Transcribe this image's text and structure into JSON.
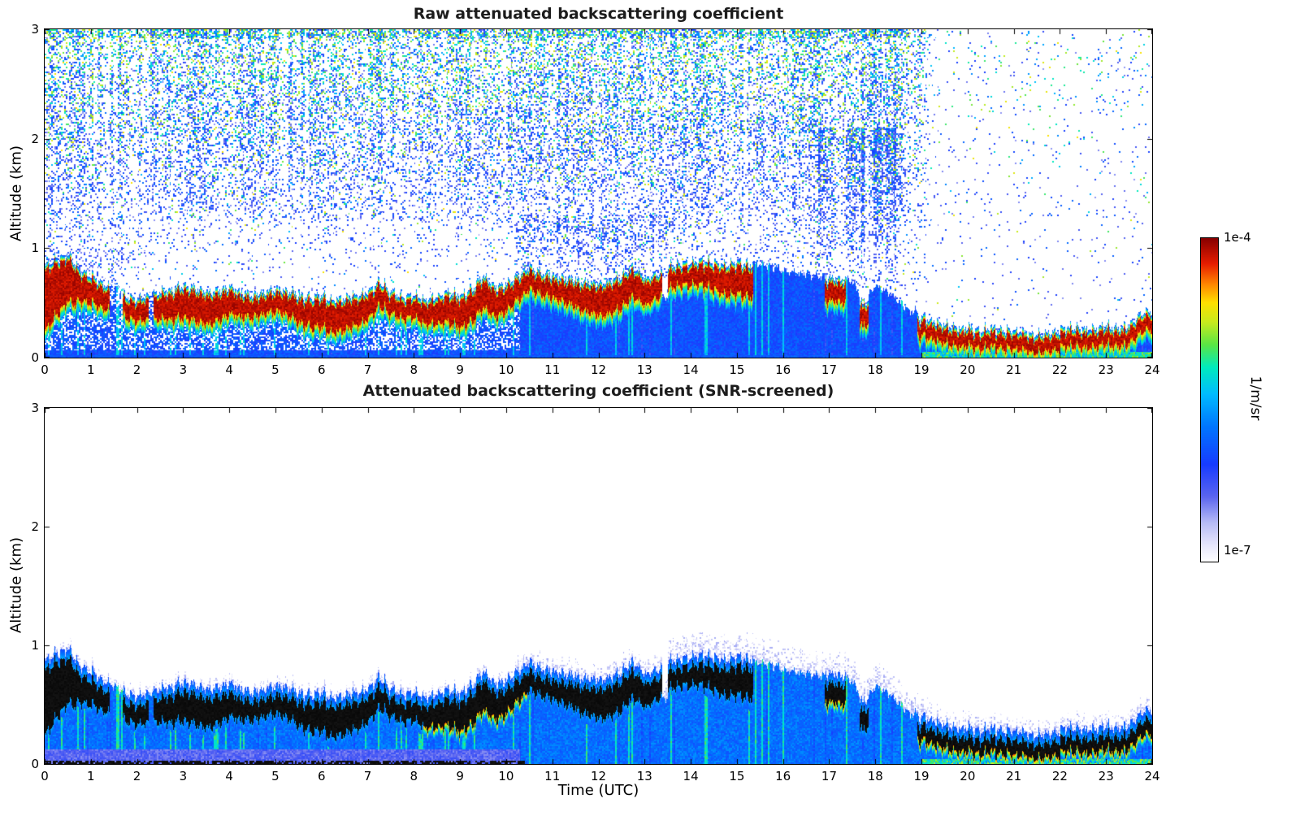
{
  "chart_data": {
    "type": "heatmap",
    "panels": [
      {
        "title": "Raw attenuated backscattering coefficient",
        "mode": "raw",
        "ylabel": "Altitude (km)"
      },
      {
        "title": "Attenuated backscattering coefficient (SNR-screened)",
        "mode": "screened",
        "ylabel": "Altitude (km)"
      }
    ],
    "xlabel": "Time (UTC)",
    "x_range": [
      0,
      24
    ],
    "y_range": [
      0,
      3
    ],
    "x_ticks": [
      0,
      1,
      2,
      3,
      4,
      5,
      6,
      7,
      8,
      9,
      10,
      11,
      12,
      13,
      14,
      15,
      16,
      17,
      18,
      19,
      20,
      21,
      22,
      23,
      24
    ],
    "y_ticks": [
      0,
      1,
      2,
      3
    ],
    "colorbar": {
      "max_label": "1e-4",
      "min_label": "1e-7",
      "unit": "1/m/sr",
      "scale": "log"
    },
    "colormap_stops": [
      [
        0.0,
        255,
        255,
        255
      ],
      [
        0.05,
        232,
        232,
        252
      ],
      [
        0.12,
        184,
        188,
        246
      ],
      [
        0.2,
        92,
        102,
        240
      ],
      [
        0.3,
        24,
        60,
        255
      ],
      [
        0.42,
        0,
        120,
        255
      ],
      [
        0.52,
        0,
        190,
        255
      ],
      [
        0.6,
        0,
        235,
        190
      ],
      [
        0.67,
        90,
        230,
        70
      ],
      [
        0.74,
        200,
        235,
        30
      ],
      [
        0.8,
        255,
        225,
        0
      ],
      [
        0.86,
        255,
        130,
        0
      ],
      [
        0.92,
        232,
        30,
        0
      ],
      [
        1.0,
        135,
        0,
        0
      ]
    ],
    "time_step_h": 0.25,
    "aerosol_layer_top_km": [
      0.8,
      0.85,
      0.9,
      0.75,
      0.7,
      0.62,
      0.58,
      0.52,
      0.48,
      0.52,
      0.55,
      0.57,
      0.6,
      0.58,
      0.55,
      0.57,
      0.6,
      0.55,
      0.52,
      0.55,
      0.58,
      0.55,
      0.52,
      0.5,
      0.52,
      0.48,
      0.5,
      0.52,
      0.55,
      0.65,
      0.55,
      0.5,
      0.52,
      0.48,
      0.5,
      0.55,
      0.52,
      0.58,
      0.7,
      0.6,
      0.62,
      0.7,
      0.78,
      0.72,
      0.7,
      0.68,
      0.65,
      0.65,
      0.62,
      0.65,
      0.7,
      0.78,
      0.68,
      0.7,
      0.78,
      0.8,
      0.82,
      0.84,
      0.82,
      0.8,
      0.82,
      0.8,
      null,
      null,
      null,
      null,
      null,
      null,
      0.68,
      0.66,
      null,
      0.45,
      null,
      null,
      null,
      null,
      0.32,
      0.28,
      0.25,
      0.22,
      0.22,
      0.2,
      0.22,
      0.2,
      0.2,
      0.18,
      0.16,
      0.18,
      0.2,
      0.22,
      0.2,
      0.22,
      0.24,
      0.22,
      0.25,
      0.35,
      0.38
    ],
    "mixed_region_top_km": [
      0.88,
      0.93,
      0.98,
      0.83,
      0.78,
      0.7,
      0.66,
      0.6,
      0.56,
      0.6,
      0.63,
      0.65,
      0.68,
      0.66,
      0.63,
      0.65,
      0.68,
      0.63,
      0.6,
      0.63,
      0.66,
      0.63,
      0.6,
      0.58,
      0.6,
      0.56,
      0.58,
      0.6,
      0.63,
      0.73,
      0.63,
      0.58,
      0.6,
      0.56,
      0.58,
      0.63,
      0.6,
      0.66,
      0.78,
      0.68,
      0.7,
      0.78,
      0.86,
      0.8,
      0.78,
      0.76,
      0.73,
      0.73,
      0.7,
      0.73,
      0.78,
      0.86,
      0.76,
      0.78,
      0.86,
      0.88,
      0.9,
      0.92,
      0.9,
      0.88,
      0.9,
      0.88,
      0.85,
      0.83,
      0.8,
      0.78,
      0.76,
      0.74,
      0.76,
      0.74,
      0.7,
      0.53,
      0.66,
      0.6,
      0.52,
      0.42,
      0.45,
      0.41,
      0.38,
      0.35,
      0.35,
      0.33,
      0.35,
      0.33,
      0.33,
      0.31,
      0.29,
      0.31,
      0.33,
      0.35,
      0.33,
      0.35,
      0.37,
      0.35,
      0.38,
      0.48,
      0.5
    ]
  }
}
